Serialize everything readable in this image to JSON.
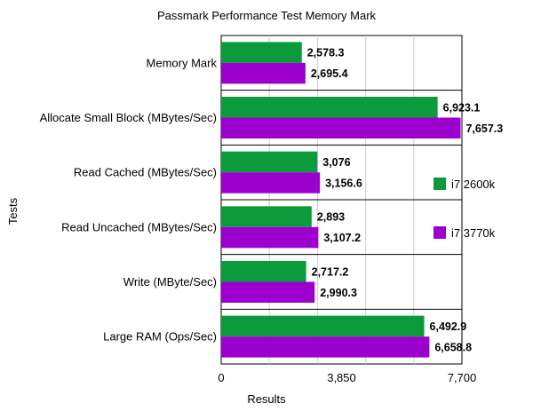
{
  "chart_data": {
    "type": "bar",
    "orientation": "horizontal",
    "title": "Passmark Performance Test Memory Mark",
    "xlabel": "Results",
    "ylabel": "Tests",
    "xlim": [
      0,
      7700
    ],
    "xticks": [
      "0",
      "3,850",
      "7,700"
    ],
    "categories": [
      "Memory Mark",
      "Allocate Small Block (MBytes/Sec)",
      "Read Cached (MBytes/Sec)",
      "Read Uncached (MBytes/Sec)",
      "Write (MByte/Sec)",
      "Large RAM (Ops/Sec)"
    ],
    "series": [
      {
        "name": "i7 2600k",
        "color": "#0b9a3c",
        "values": [
          2578.3,
          6923.1,
          3076,
          2893,
          2717.2,
          6492.9
        ],
        "labels": [
          "2,578.3",
          "6,923.1",
          "3,076",
          "2,893",
          "2,717.2",
          "6,492.9"
        ]
      },
      {
        "name": "i7 3770k",
        "color": "#9b00cf",
        "values": [
          2695.4,
          7657.3,
          3156.6,
          3107.2,
          2990.3,
          6658.8
        ],
        "labels": [
          "2,695.4",
          "7,657.3",
          "3,156.6",
          "3,107.2",
          "2,990.3",
          "6,658.8"
        ]
      }
    ],
    "grid": true,
    "legend_position": "right"
  }
}
